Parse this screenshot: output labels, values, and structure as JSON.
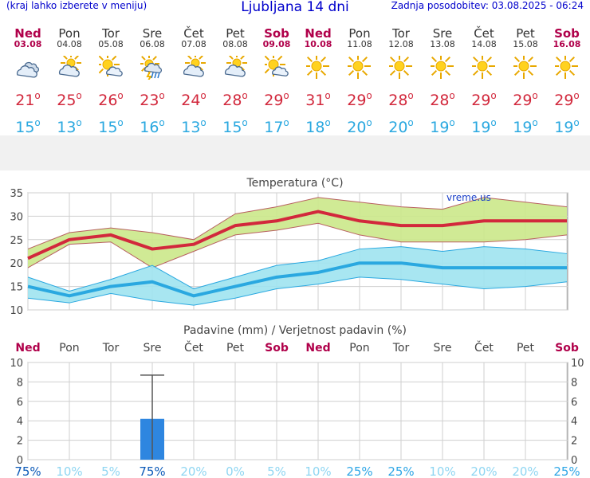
{
  "header": {
    "left_note": "(kraj lahko izberete v meniju)",
    "title": "Ljubljana 14 dni",
    "updated": "Zadnja posodobitev: 03.08.2025 - 06:24"
  },
  "days": [
    {
      "name": "Ned",
      "date": "03.08",
      "weekend": true,
      "icon": "cloudy-icon",
      "tmax": "21",
      "tmin": "15"
    },
    {
      "name": "Pon",
      "date": "04.08",
      "weekend": false,
      "icon": "partly-cloudy-icon",
      "tmax": "25",
      "tmin": "13"
    },
    {
      "name": "Tor",
      "date": "05.08",
      "weekend": false,
      "icon": "sun-cloud-icon",
      "tmax": "26",
      "tmin": "15"
    },
    {
      "name": "Sre",
      "date": "06.08",
      "weekend": false,
      "icon": "sun-thunder-rain-icon",
      "tmax": "23",
      "tmin": "16"
    },
    {
      "name": "Čet",
      "date": "07.08",
      "weekend": false,
      "icon": "partly-cloudy-icon",
      "tmax": "24",
      "tmin": "13"
    },
    {
      "name": "Pet",
      "date": "08.08",
      "weekend": false,
      "icon": "partly-cloudy-icon",
      "tmax": "28",
      "tmin": "15"
    },
    {
      "name": "Sob",
      "date": "09.08",
      "weekend": true,
      "icon": "sun-cloud-icon",
      "tmax": "29",
      "tmin": "17"
    },
    {
      "name": "Ned",
      "date": "10.08",
      "weekend": true,
      "icon": "sun-icon",
      "tmax": "31",
      "tmin": "18"
    },
    {
      "name": "Pon",
      "date": "11.08",
      "weekend": false,
      "icon": "sun-icon",
      "tmax": "29",
      "tmin": "20"
    },
    {
      "name": "Tor",
      "date": "12.08",
      "weekend": false,
      "icon": "sun-icon",
      "tmax": "28",
      "tmin": "20"
    },
    {
      "name": "Sre",
      "date": "13.08",
      "weekend": false,
      "icon": "sun-icon",
      "tmax": "28",
      "tmin": "19"
    },
    {
      "name": "Čet",
      "date": "14.08",
      "weekend": false,
      "icon": "sun-icon",
      "tmax": "29",
      "tmin": "19"
    },
    {
      "name": "Pet",
      "date": "15.08",
      "weekend": false,
      "icon": "sun-icon",
      "tmax": "29",
      "tmin": "19"
    },
    {
      "name": "Sob",
      "date": "16.08",
      "weekend": true,
      "icon": "sun-icon",
      "tmax": "29",
      "tmin": "19"
    }
  ],
  "colors": {
    "max_line": "#d2283c",
    "max_band": "#cbe88a",
    "min_line": "#2aa8e0",
    "min_band": "#9fe3ef",
    "bar": "#2e86e0",
    "weekend": "#b0004a",
    "header": "#0000cc"
  },
  "chart_data": [
    {
      "type": "line",
      "title": "Temperatura (°C)",
      "watermark": "vreme.us",
      "ylim": [
        10,
        35
      ],
      "yticks": [
        10,
        15,
        20,
        25,
        30,
        35
      ],
      "grid": true,
      "x": [
        "03.08",
        "04.08",
        "05.08",
        "06.08",
        "07.08",
        "08.08",
        "09.08",
        "10.08",
        "11.08",
        "12.08",
        "13.08",
        "14.08",
        "15.08",
        "16.08"
      ],
      "series": [
        {
          "values": [
            21,
            25,
            26,
            23,
            24,
            28,
            29,
            31,
            29,
            28,
            28,
            29,
            29,
            29
          ],
          "band_low": [
            19,
            24,
            24.5,
            19,
            22.5,
            26,
            27,
            28.5,
            26,
            24.5,
            24.5,
            24.5,
            25,
            26
          ],
          "band_high": [
            23,
            26.5,
            27.5,
            26.5,
            25,
            30.5,
            32,
            34,
            33,
            32,
            31.5,
            34,
            33,
            32
          ]
        },
        {
          "values": [
            15,
            13,
            15,
            16,
            13,
            15,
            17,
            18,
            20,
            20,
            19,
            19,
            19,
            19
          ],
          "band_low": [
            12.5,
            11.5,
            13.5,
            12,
            11,
            12.5,
            14.5,
            15.5,
            17,
            16.5,
            15.5,
            14.5,
            15,
            16
          ],
          "band_high": [
            17,
            14,
            16.5,
            19.5,
            14.5,
            17,
            19.5,
            20.5,
            23,
            23.5,
            22.5,
            23.5,
            23,
            22
          ]
        }
      ]
    },
    {
      "type": "bar",
      "title": "Padavine (mm) / Verjetnost padavin (%)",
      "ylim": [
        0,
        10
      ],
      "yticks": [
        0,
        2,
        4,
        6,
        8,
        10
      ],
      "grid": true,
      "categories": [
        "Ned",
        "Pon",
        "Tor",
        "Sre",
        "Čet",
        "Pet",
        "Sob",
        "Ned",
        "Pon",
        "Tor",
        "Sre",
        "Čet",
        "Pet",
        "Sob"
      ],
      "weekend": [
        true,
        false,
        false,
        false,
        false,
        false,
        true,
        true,
        false,
        false,
        false,
        false,
        false,
        true
      ],
      "values": [
        0,
        0,
        0,
        4.2,
        0,
        0,
        0,
        0,
        0,
        0,
        0,
        0,
        0,
        0
      ],
      "error_high": [
        0,
        0,
        0,
        8.7,
        0,
        0,
        0,
        0,
        0,
        0,
        0,
        0,
        0,
        0
      ],
      "probability": [
        "75%",
        "10%",
        "5%",
        "75%",
        "20%",
        "0%",
        "5%",
        "10%",
        "25%",
        "25%",
        "10%",
        "20%",
        "20%",
        "25%"
      ]
    }
  ]
}
